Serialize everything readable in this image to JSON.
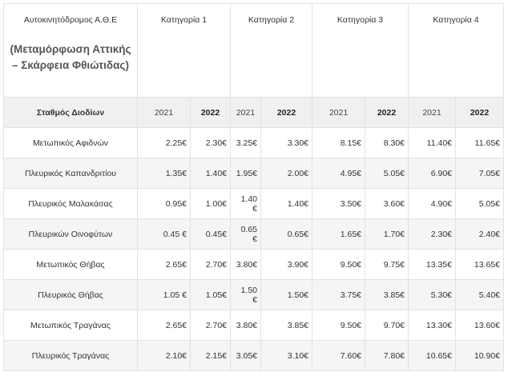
{
  "header": {
    "road": "Αυτοκινητόδρομος Α.Θ.Ε",
    "section_line1": "(Μεταμόρφωση Αττικής",
    "section_line2": "– Σκάρφεια Φθιώτιδας)",
    "categories": [
      "Κατηγορία  1",
      "Κατηγορία 2",
      "Κατηγορία 3",
      "Κατηγορία 4"
    ]
  },
  "subheader": {
    "station_label": "Σταθμός Διοδίων",
    "year_a": "2021",
    "year_b": "2022"
  },
  "rows": [
    {
      "station": "Μετωπικός Αφιδνών",
      "prices": [
        "2.25€",
        "2.30€",
        "3.25€",
        "3.30€",
        "8.15€",
        "8.30€",
        "11.40€",
        "11.65€"
      ]
    },
    {
      "station": "Πλευρικός Καπανδριτίου",
      "prices": [
        "1.35€",
        "1.40€",
        "1.95€",
        "2.00€",
        "4.95€",
        "5.05€",
        "6.90€",
        "7.05€"
      ]
    },
    {
      "station": "Πλευρικός Μαλακάσας",
      "prices": [
        "0.95€",
        "1.00€",
        "1.40 €",
        "1.40€",
        "3.50€",
        "3.60€",
        "4.90€",
        "5.05€"
      ]
    },
    {
      "station": "Πλευρικών Οινοφύτων",
      "prices": [
        "0.45 €",
        "0.45€",
        "0.65 €",
        "0.65€",
        "1.65€",
        "1.70€",
        "2.30€",
        "2.40€"
      ]
    },
    {
      "station": "Μετωπικός Θήβας",
      "prices": [
        "2.65€",
        "2.70€",
        "3.80€",
        "3.90€",
        "9.50€",
        "9.75€",
        "13.35€",
        "13.65€"
      ]
    },
    {
      "station": "Πλευρικός Θήβας",
      "prices": [
        "1.05 €",
        "1.05€",
        "1.50 €",
        "1.50€",
        "3.75€",
        "3.85€",
        "5.30€",
        "5.40€"
      ]
    },
    {
      "station": "Μετωπικός Τραγάνας",
      "prices": [
        "2.65€",
        "2.70€",
        "3.80€",
        "3.85€",
        "9.50€",
        "9.70€",
        "13.30€",
        "13.60€"
      ]
    },
    {
      "station": "Πλευρικός Τραγάνας",
      "prices": [
        "2.10€",
        "2.15€",
        "3.05€",
        "3.10€",
        "7.60€",
        "7.80€",
        "10.65€",
        "10.90€"
      ]
    }
  ]
}
